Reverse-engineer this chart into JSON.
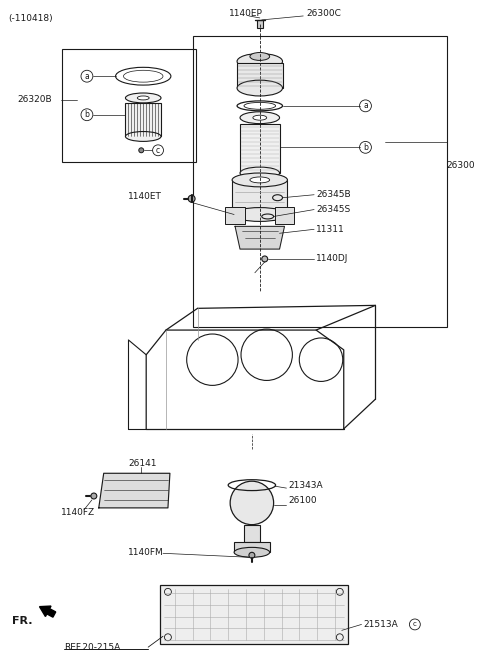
{
  "bg_color": "#ffffff",
  "line_color": "#1a1a1a",
  "fig_width": 4.8,
  "fig_height": 6.71,
  "dpi": 100,
  "labels": {
    "top_left_note": "(-110418)",
    "fr_label": "FR.",
    "ref_label": "REF.20-215A",
    "p1140EP": "1140EP",
    "p26300C": "26300C",
    "p26300": "26300",
    "p26320B": "26320B",
    "p1140ET": "1140ET",
    "p26345B": "26345B",
    "p26345S": "26345S",
    "p11311": "11311",
    "p1140DJ": "1140DJ",
    "p26141": "26141",
    "p1140FZ": "1140FZ",
    "p1140FM": "1140FM",
    "p21343A": "21343A",
    "p26100": "26100",
    "p21513A": "21513A",
    "la": "a",
    "lb": "b",
    "lc": "c"
  }
}
